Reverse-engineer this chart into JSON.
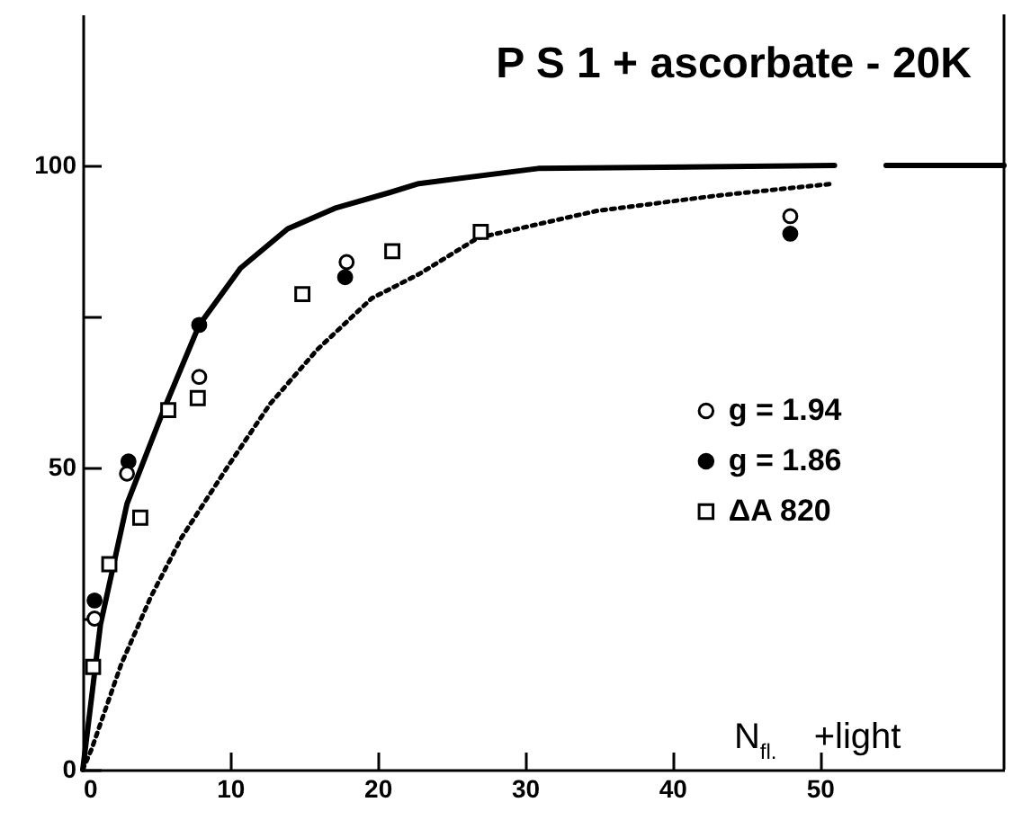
{
  "chart_data": {
    "type": "scatter",
    "title": "P S  1 + ascorbate - 20K",
    "xlabel": "N$_{fl.}$  +light",
    "xlim": [
      0,
      62.5
    ],
    "xticks": [
      0,
      10,
      20,
      30,
      40,
      50
    ],
    "ylim": [
      0,
      125
    ],
    "yticks": [
      0,
      {
        "value": 25,
        "label": null
      },
      50,
      {
        "value": 75,
        "label": null
      },
      100
    ],
    "legend": "right",
    "grid": false,
    "series": [
      {
        "name": "g = 1.94",
        "marker": "circle",
        "color": "#ffffff",
        "x": [
          0.8,
          3.0,
          7.9,
          17.9,
          48
        ],
        "values": [
          25,
          49,
          65,
          84,
          91.6
        ]
      },
      {
        "name": "g = 1.86",
        "marker": "circle",
        "color": "#000000",
        "x": [
          0.8,
          3.1,
          7.9,
          17.8,
          48
        ],
        "values": [
          28,
          51,
          73.6,
          81.5,
          88.7
        ]
      },
      {
        "name": "ΔA 820",
        "marker": "square",
        "color": "#ffffff",
        "x": [
          0.7,
          1.8,
          3.9,
          5.8,
          7.8,
          14.9,
          21,
          27
        ],
        "values": [
          17,
          34,
          41.7,
          59.5,
          61.5,
          78.7,
          85.8,
          89
        ]
      },
      {
        "type": "line",
        "line_style": "solid",
        "color": "#000000",
        "x": [
          0,
          1.2,
          3,
          5.4,
          7.9,
          10.7,
          13.9,
          17.2,
          20.8,
          22.8,
          30.9,
          51,
          53,
          54.5,
          62.5
        ],
        "values": [
          0,
          24,
          44,
          59,
          73.6,
          83,
          89.5,
          93,
          95.5,
          97,
          99.5,
          100,
          null,
          100,
          100
        ]
      },
      {
        "type": "line",
        "line_style": "dotted",
        "color": "#000000",
        "x": [
          0,
          0.6,
          2.6,
          4.6,
          6.7,
          9.9,
          12.7,
          15.9,
          19.6,
          22.8,
          26.8,
          34.9,
          43,
          51
        ],
        "values": [
          0,
          3.4,
          17.4,
          28.5,
          38.4,
          50.4,
          60.5,
          69.5,
          78,
          82,
          88,
          92.5,
          95,
          97
        ]
      }
    ]
  }
}
